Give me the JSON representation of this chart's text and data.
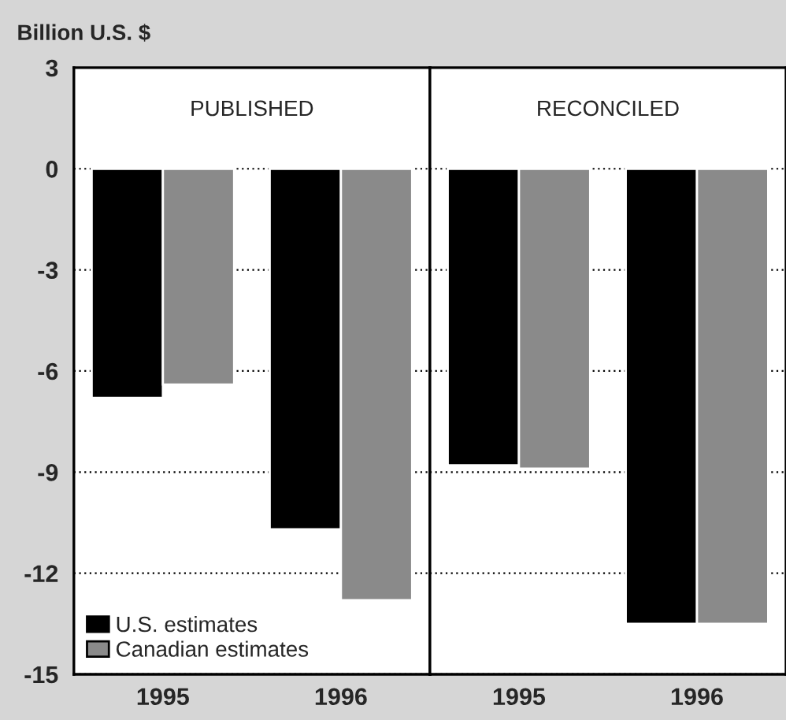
{
  "chart_data": [
    {
      "type": "bar",
      "title": "PUBLISHED",
      "ylabel": "Billion U.S. $",
      "categories": [
        "1995",
        "1996"
      ],
      "series": [
        {
          "name": "U.S. estimates",
          "color": "#000000",
          "values": [
            -6.8,
            -10.7
          ]
        },
        {
          "name": "Canadian estimates",
          "color": "#8a8a8a",
          "values": [
            -6.4,
            -12.8
          ]
        }
      ],
      "ylim": [
        -15,
        3
      ],
      "yticks": [
        -15,
        -12,
        -9,
        -6,
        -3,
        0,
        3
      ],
      "grid": "y",
      "legend": "bottom left"
    },
    {
      "type": "bar",
      "title": "RECONCILED",
      "categories": [
        "1995",
        "1996"
      ],
      "series": [
        {
          "color": "#000000",
          "values": [
            -8.8,
            -13.5
          ]
        },
        {
          "color": "#8a8a8a",
          "values": [
            -8.9,
            -13.5
          ]
        }
      ],
      "ylim": [
        -15,
        3
      ],
      "yticks": [
        -15,
        -12,
        -9,
        -6,
        -3,
        0,
        3
      ],
      "grid": "y",
      "tick_labels": "x"
    }
  ]
}
